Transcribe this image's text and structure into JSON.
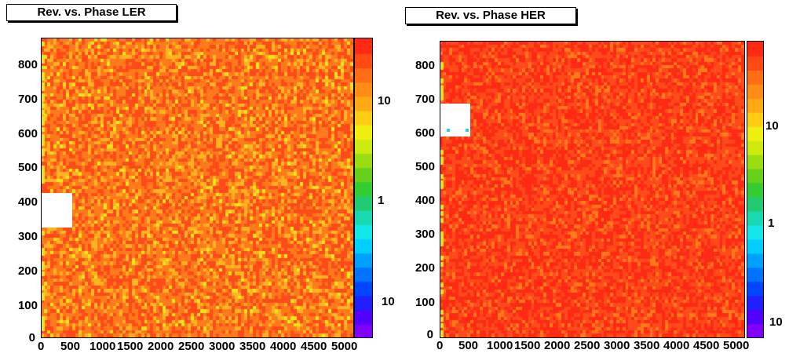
{
  "chart_data": [
    {
      "type": "heatmap",
      "title": "Rev. vs. Phase LER",
      "xlabel": "",
      "ylabel": "",
      "xlim": [
        0,
        5000
      ],
      "ylim": [
        0,
        870
      ],
      "x_ticks": [
        "0",
        "500",
        "1000",
        "1500",
        "2000",
        "2500",
        "3000",
        "3500",
        "4000",
        "4500",
        "5000"
      ],
      "y_ticks": [
        "0",
        "100",
        "200",
        "300",
        "400",
        "500",
        "600",
        "700",
        "800"
      ],
      "z_scale": "log",
      "colorbar_labels": [
        "10",
        "1",
        "10"
      ],
      "dominant_colors": [
        "#ff4a1a",
        "#ff7a1a",
        "#ffb321",
        "#e6e619"
      ],
      "empty_region": {
        "x": [
          0,
          450
        ],
        "y": [
          335,
          430
        ]
      }
    },
    {
      "type": "heatmap",
      "title": "Rev. vs. Phase HER",
      "xlabel": "",
      "ylabel": "",
      "xlim": [
        0,
        5000
      ],
      "ylim": [
        0,
        870
      ],
      "x_ticks": [
        "0",
        "500",
        "1000",
        "1500",
        "2000",
        "2500",
        "3000",
        "3500",
        "4000",
        "4500",
        "5000"
      ],
      "y_ticks": [
        "0",
        "100",
        "200",
        "300",
        "400",
        "500",
        "600",
        "700",
        "800"
      ],
      "z_scale": "log",
      "colorbar_labels": [
        "10",
        "1",
        "10"
      ],
      "dominant_colors": [
        "#ff2a14",
        "#ff4a1a",
        "#ff7a1a"
      ],
      "empty_region": {
        "x": [
          0,
          450
        ],
        "y": [
          590,
          690
        ]
      }
    }
  ],
  "palette_colors": [
    "#7f00ff",
    "#5200ff",
    "#1f1fff",
    "#0046ff",
    "#0073ff",
    "#00a0ff",
    "#00cfff",
    "#13e8e8",
    "#19d9b0",
    "#21cc70",
    "#33cc33",
    "#66d11a",
    "#99dd10",
    "#ccea10",
    "#f0f010",
    "#ffcc14",
    "#ffaa14",
    "#ff8c14",
    "#ff6e14",
    "#ff4a14",
    "#ff2a14"
  ]
}
